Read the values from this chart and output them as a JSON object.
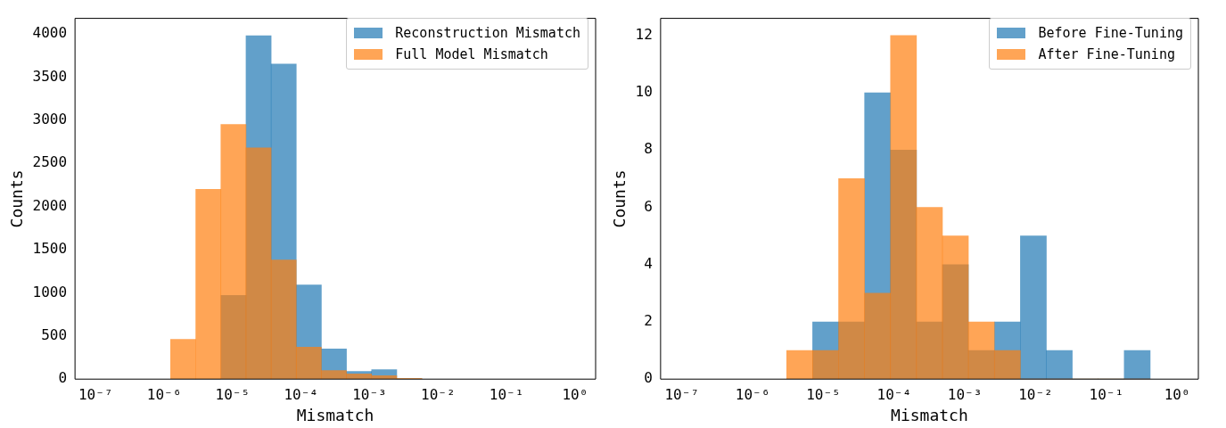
{
  "chart_data": [
    {
      "type": "histogram",
      "xlabel": "Mismatch",
      "ylabel": "Counts",
      "log": "x",
      "legend": "top right",
      "grid": false,
      "bins": [
        1.24e-06,
        2.9e-06,
        6.75e-06,
        1.57e-05,
        3.66e-05,
        8.5e-05,
        0.000198,
        0.00046,
        0.00107,
        0.0025,
        0.0058
      ],
      "series": [
        {
          "name": "Reconstruction Mismatch",
          "color": "#1f77b4",
          "values": [
            0,
            0,
            970,
            3980,
            3650,
            1090,
            350,
            90,
            110,
            0
          ]
        },
        {
          "name": "Full Model Mismatch",
          "color": "#ff7f0e",
          "values": [
            460,
            2200,
            2950,
            2680,
            1380,
            370,
            100,
            60,
            40,
            10
          ]
        }
      ],
      "xlim": [
        5e-08,
        2
      ],
      "xticks": [
        {
          "value": 1e-07,
          "label": "10⁻⁷"
        },
        {
          "value": 1e-06,
          "label": "10⁻⁶"
        },
        {
          "value": 1e-05,
          "label": "10⁻⁵"
        },
        {
          "value": 0.0001,
          "label": "10⁻⁴"
        },
        {
          "value": 0.001,
          "label": "10⁻³"
        },
        {
          "value": 0.01,
          "label": "10⁻²"
        },
        {
          "value": 0.1,
          "label": "10⁻¹"
        },
        {
          "value": 1,
          "label": "10⁰"
        }
      ],
      "ylim": [
        0,
        4180
      ],
      "yticks": [
        0,
        500,
        1000,
        1500,
        2000,
        2500,
        3000,
        3500,
        4000
      ]
    },
    {
      "type": "histogram",
      "xlabel": "Mismatch",
      "ylabel": "Counts",
      "log": "x",
      "legend": "top right",
      "grid": false,
      "bins": [
        3.03e-06,
        7.06e-06,
        1.64e-05,
        3.83e-05,
        8.91e-05,
        0.000207,
        0.000483,
        0.00112,
        0.00262,
        0.0061,
        0.0142,
        0.033,
        0.0769,
        0.179,
        0.417
      ],
      "series": [
        {
          "name": "Before Fine-Tuning",
          "color": "#1f77b4",
          "values": [
            0,
            2,
            2,
            10,
            8,
            2,
            4,
            1,
            2,
            5,
            1,
            0,
            0,
            1
          ]
        },
        {
          "name": "After Fine-Tuning",
          "color": "#ff7f0e",
          "values": [
            1,
            1,
            7,
            3,
            12,
            6,
            5,
            2,
            1,
            0,
            0,
            0,
            0,
            0
          ]
        }
      ],
      "xlim": [
        5e-08,
        2
      ],
      "xticks": [
        {
          "value": 1e-07,
          "label": "10⁻⁷"
        },
        {
          "value": 1e-06,
          "label": "10⁻⁶"
        },
        {
          "value": 1e-05,
          "label": "10⁻⁵"
        },
        {
          "value": 0.0001,
          "label": "10⁻⁴"
        },
        {
          "value": 0.001,
          "label": "10⁻³"
        },
        {
          "value": 0.01,
          "label": "10⁻²"
        },
        {
          "value": 0.1,
          "label": "10⁻¹"
        },
        {
          "value": 1,
          "label": "10⁰"
        }
      ],
      "ylim": [
        0,
        12.6
      ],
      "yticks": [
        0,
        2,
        4,
        6,
        8,
        10,
        12
      ]
    }
  ]
}
